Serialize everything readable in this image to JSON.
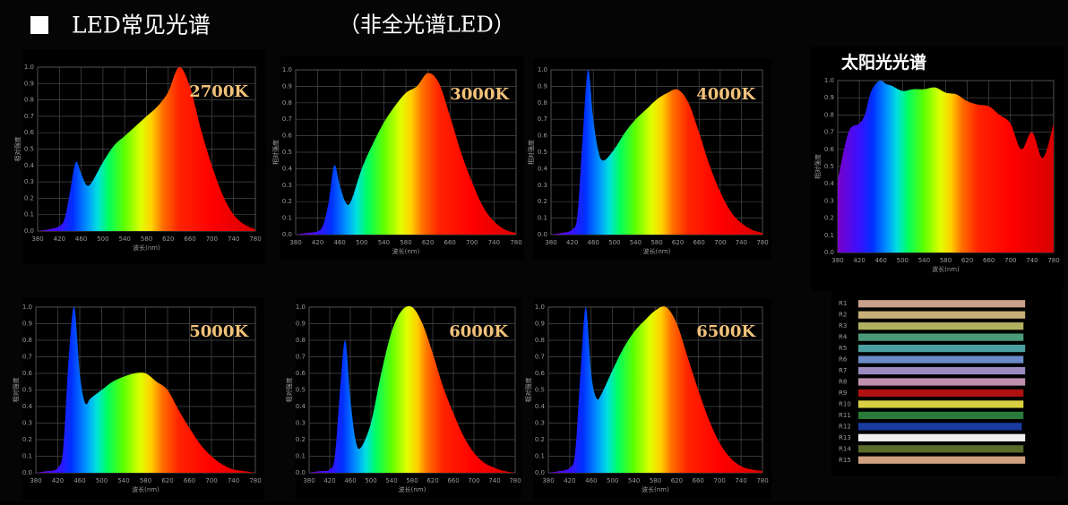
{
  "header": {
    "title": "LED常见光谱",
    "subtitle": "（非全光谱LED）"
  },
  "chart_data": [
    {
      "type": "area",
      "title": "2700K",
      "xlabel": "波长(nm)",
      "ylabel": "相对强度",
      "x": [
        380,
        400,
        420,
        430,
        440,
        450,
        460,
        470,
        480,
        500,
        520,
        540,
        560,
        580,
        600,
        620,
        640,
        660,
        680,
        700,
        720,
        740,
        760,
        780
      ],
      "values": [
        0,
        0.01,
        0.03,
        0.08,
        0.25,
        0.42,
        0.35,
        0.28,
        0.3,
        0.42,
        0.52,
        0.58,
        0.64,
        0.7,
        0.76,
        0.85,
        1.0,
        0.88,
        0.62,
        0.4,
        0.22,
        0.1,
        0.04,
        0.01
      ],
      "xlim": [
        380,
        780
      ],
      "ylim": [
        0,
        1
      ],
      "xticks": [
        380,
        420,
        460,
        500,
        540,
        580,
        620,
        660,
        700,
        740,
        780
      ],
      "yticks": [
        {
          "value": 0,
          "label": "0.0"
        },
        0.1,
        0.2,
        0.3,
        0.4,
        0.5,
        0.6,
        0.7,
        0.8,
        0.9,
        {
          "value": 1,
          "label": "1.0"
        }
      ],
      "grid": true
    },
    {
      "type": "area",
      "title": "3000K",
      "xlabel": "波长(nm)",
      "ylabel": "相对强度",
      "x": [
        380,
        400,
        420,
        430,
        440,
        450,
        460,
        470,
        480,
        500,
        520,
        540,
        560,
        580,
        600,
        620,
        640,
        660,
        680,
        700,
        720,
        740,
        760,
        780
      ],
      "values": [
        0,
        0.01,
        0.02,
        0.06,
        0.2,
        0.42,
        0.3,
        0.2,
        0.2,
        0.4,
        0.55,
        0.68,
        0.78,
        0.86,
        0.9,
        0.98,
        0.92,
        0.72,
        0.5,
        0.32,
        0.17,
        0.08,
        0.03,
        0.01
      ],
      "xlim": [
        380,
        780
      ],
      "ylim": [
        0,
        1
      ],
      "xticks": [
        380,
        420,
        460,
        500,
        540,
        580,
        620,
        660,
        700,
        740,
        780
      ],
      "yticks": [
        {
          "value": 0,
          "label": "0.0"
        },
        0.1,
        0.2,
        0.3,
        0.4,
        0.5,
        0.6,
        0.7,
        0.8,
        0.9,
        {
          "value": 1,
          "label": "1.0"
        }
      ],
      "grid": true
    },
    {
      "type": "area",
      "title": "4000K",
      "xlabel": "波长(nm)",
      "ylabel": "相对强度",
      "x": [
        380,
        400,
        420,
        430,
        440,
        450,
        460,
        470,
        480,
        500,
        520,
        540,
        560,
        580,
        600,
        620,
        640,
        660,
        680,
        700,
        720,
        740,
        760,
        780
      ],
      "values": [
        0,
        0.01,
        0.03,
        0.12,
        0.6,
        1.0,
        0.7,
        0.5,
        0.45,
        0.52,
        0.62,
        0.7,
        0.76,
        0.82,
        0.86,
        0.88,
        0.8,
        0.62,
        0.42,
        0.26,
        0.14,
        0.07,
        0.03,
        0.01
      ],
      "xlim": [
        380,
        780
      ],
      "ylim": [
        0,
        1
      ],
      "xticks": [
        380,
        420,
        460,
        500,
        540,
        580,
        620,
        660,
        700,
        740,
        780
      ],
      "yticks": [
        {
          "value": 0,
          "label": "0.0"
        },
        0.1,
        0.2,
        0.3,
        0.4,
        0.5,
        0.6,
        0.7,
        0.8,
        0.9,
        {
          "value": 1,
          "label": "1.0"
        }
      ],
      "grid": true
    },
    {
      "type": "area",
      "title": "太阳光光谱",
      "xlabel": "波长(nm)",
      "ylabel": "相对强度",
      "x": [
        380,
        400,
        420,
        430,
        440,
        450,
        460,
        470,
        480,
        500,
        520,
        540,
        560,
        580,
        600,
        620,
        640,
        660,
        680,
        700,
        720,
        740,
        760,
        780
      ],
      "values": [
        0.42,
        0.7,
        0.75,
        0.8,
        0.92,
        0.98,
        1.0,
        0.98,
        0.97,
        0.94,
        0.95,
        0.95,
        0.96,
        0.93,
        0.92,
        0.88,
        0.86,
        0.85,
        0.8,
        0.75,
        0.6,
        0.7,
        0.55,
        0.75
      ],
      "xlim": [
        380,
        780
      ],
      "ylim": [
        0,
        1
      ],
      "xticks": [
        380,
        420,
        460,
        500,
        540,
        580,
        620,
        660,
        700,
        740,
        780
      ],
      "yticks": [
        {
          "value": 0,
          "label": "0.0"
        },
        0.1,
        0.2,
        0.3,
        0.4,
        0.5,
        0.6,
        0.7,
        0.8,
        0.9,
        {
          "value": 1,
          "label": "1.0"
        }
      ],
      "grid": true
    },
    {
      "type": "area",
      "title": "5000K",
      "xlabel": "波长(nm)",
      "ylabel": "相对强度",
      "x": [
        380,
        400,
        420,
        430,
        440,
        450,
        460,
        470,
        480,
        500,
        520,
        540,
        560,
        580,
        600,
        620,
        640,
        660,
        680,
        700,
        720,
        740,
        760,
        780
      ],
      "values": [
        0,
        0.01,
        0.03,
        0.15,
        0.7,
        1.0,
        0.6,
        0.42,
        0.45,
        0.5,
        0.55,
        0.58,
        0.6,
        0.6,
        0.55,
        0.5,
        0.38,
        0.27,
        0.17,
        0.1,
        0.05,
        0.02,
        0.01,
        0
      ],
      "xlim": [
        380,
        780
      ],
      "ylim": [
        0,
        1
      ],
      "xticks": [
        380,
        420,
        460,
        500,
        540,
        580,
        620,
        660,
        700,
        740,
        780
      ],
      "yticks": [
        {
          "value": 0,
          "label": "0.0"
        },
        0.1,
        0.2,
        0.3,
        0.4,
        0.5,
        0.6,
        0.7,
        0.8,
        0.9,
        {
          "value": 1,
          "label": "1.0"
        }
      ],
      "grid": true
    },
    {
      "type": "area",
      "title": "6000K",
      "xlabel": "波长(nm)",
      "ylabel": "相对强度",
      "x": [
        380,
        400,
        420,
        430,
        440,
        450,
        460,
        470,
        480,
        500,
        520,
        540,
        560,
        580,
        600,
        620,
        640,
        660,
        680,
        700,
        720,
        740,
        760,
        780
      ],
      "values": [
        0,
        0.01,
        0.02,
        0.1,
        0.5,
        0.8,
        0.45,
        0.2,
        0.15,
        0.3,
        0.6,
        0.85,
        0.98,
        1.0,
        0.9,
        0.72,
        0.52,
        0.36,
        0.22,
        0.12,
        0.06,
        0.03,
        0.01,
        0
      ],
      "xlim": [
        380,
        780
      ],
      "ylim": [
        0,
        1
      ],
      "xticks": [
        380,
        420,
        460,
        500,
        540,
        580,
        620,
        660,
        700,
        740,
        780
      ],
      "yticks": [
        {
          "value": 0,
          "label": "0.0"
        },
        0.1,
        0.2,
        0.3,
        0.4,
        0.5,
        0.6,
        0.7,
        0.8,
        0.9,
        {
          "value": 1,
          "label": "1.0"
        }
      ],
      "grid": true
    },
    {
      "type": "area",
      "title": "6500K",
      "xlabel": "波长(nm)",
      "ylabel": "相对强度",
      "x": [
        380,
        400,
        420,
        430,
        440,
        450,
        460,
        470,
        480,
        500,
        520,
        540,
        560,
        580,
        600,
        620,
        640,
        660,
        680,
        700,
        720,
        740,
        760,
        780
      ],
      "values": [
        0,
        0.01,
        0.03,
        0.12,
        0.6,
        1.0,
        0.6,
        0.45,
        0.48,
        0.62,
        0.75,
        0.85,
        0.92,
        0.98,
        1.0,
        0.9,
        0.7,
        0.5,
        0.32,
        0.18,
        0.09,
        0.04,
        0.02,
        0.01
      ],
      "xlim": [
        380,
        780
      ],
      "ylim": [
        0,
        1
      ],
      "xticks": [
        380,
        420,
        460,
        500,
        540,
        580,
        620,
        660,
        700,
        740,
        780
      ],
      "yticks": [
        {
          "value": 0,
          "label": "0.0"
        },
        0.1,
        0.2,
        0.3,
        0.4,
        0.5,
        0.6,
        0.7,
        0.8,
        0.9,
        {
          "value": 1,
          "label": "1.0"
        }
      ],
      "grid": true
    },
    {
      "type": "barh",
      "categories": [
        "R1",
        "R2",
        "R3",
        "R4",
        "R5",
        "R6",
        "R7",
        "R8",
        "R9",
        "R10",
        "R11",
        "R12",
        "R13",
        "R14",
        "R15"
      ],
      "values": [
        98,
        98,
        97,
        97,
        98,
        97,
        98,
        98,
        97,
        97,
        97,
        96,
        98,
        97,
        98
      ],
      "colors": [
        "#c9a08a",
        "#c8b07a",
        "#b0b060",
        "#4a9a7a",
        "#4aa0a0",
        "#6a8ac8",
        "#9a8ac0",
        "#c090b0",
        "#b01010",
        "#d8d040",
        "#2a7a3a",
        "#1a3aa0",
        "#f0f0f0",
        "#5a6a2a",
        "#d0a080"
      ],
      "xlim": [
        0,
        100
      ]
    }
  ]
}
